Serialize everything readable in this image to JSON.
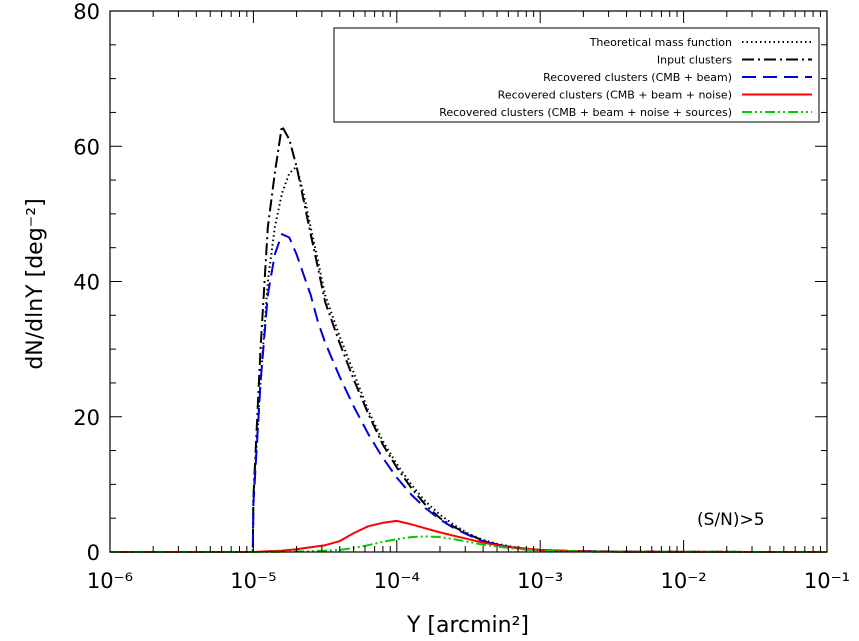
{
  "chart_data": {
    "type": "line",
    "title": "",
    "xlabel": "Y [arcmin²]",
    "ylabel": "dN/dlnY [deg⁻²]",
    "xscale": "log",
    "xlim": [
      1e-06,
      0.1
    ],
    "ylim": [
      0,
      80
    ],
    "x_tick_labels": [
      "10⁻⁶",
      "10⁻⁵",
      "10⁻⁴",
      "10⁻³",
      "10⁻²",
      "10⁻¹"
    ],
    "y_tick_labels": [
      "0",
      "20",
      "40",
      "60",
      "80"
    ],
    "grid": false,
    "legend_position": "top-right",
    "annotation": "(S/N)>5",
    "series": [
      {
        "name": "Theoretical mass function",
        "style": "dotted",
        "color": "#000000",
        "x": [
          1e-06,
          9.9e-06,
          1e-05,
          1.12e-05,
          1.26e-05,
          1.41e-05,
          1.58e-05,
          1.78e-05,
          2e-05,
          2.24e-05,
          2.51e-05,
          2.82e-05,
          3.16e-05,
          3.98e-05,
          5.01e-05,
          6.31e-05,
          7.94e-05,
          0.0001,
          0.000126,
          0.000158,
          0.0002,
          0.000251,
          0.000316,
          0.000398,
          0.000501,
          0.000631,
          0.000794,
          0.001,
          0.00158,
          0.00251,
          0.00398,
          0.01,
          0.1
        ],
        "y": [
          0,
          0,
          8,
          25,
          40,
          48,
          53,
          56,
          57,
          53,
          48,
          43,
          38,
          32,
          26.5,
          21,
          16.5,
          13,
          10,
          7.5,
          5.5,
          4,
          2.7,
          1.8,
          1.2,
          0.8,
          0.5,
          0.3,
          0.15,
          0.1,
          0.05,
          0.02,
          0
        ]
      },
      {
        "name": "Input clusters",
        "style": "dash-dot",
        "color": "#000000",
        "x": [
          1e-06,
          9.9e-06,
          1e-05,
          1.12e-05,
          1.26e-05,
          1.41e-05,
          1.58e-05,
          1.78e-05,
          2e-05,
          2.24e-05,
          2.51e-05,
          2.82e-05,
          3.16e-05,
          3.98e-05,
          5.01e-05,
          6.31e-05,
          7.94e-05,
          0.0001,
          0.000126,
          0.000158,
          0.0002,
          0.000251,
          0.000316,
          0.000398,
          0.000501,
          0.000631,
          0.000794,
          0.001,
          0.00158,
          0.00251,
          0.00398,
          0.01,
          0.1
        ],
        "y": [
          0,
          0,
          8,
          30,
          48,
          56,
          63,
          61,
          57,
          52,
          47,
          42,
          37,
          31,
          25.5,
          20.5,
          16,
          12.5,
          9.5,
          7,
          5,
          3.7,
          2.6,
          1.7,
          1.1,
          0.7,
          0.45,
          0.3,
          0.15,
          0.1,
          0.05,
          0.02,
          0
        ]
      },
      {
        "name": "Recovered clusters (CMB + beam)",
        "style": "dashed",
        "color": "#0000dd",
        "x": [
          1e-06,
          9.9e-06,
          1e-05,
          1.12e-05,
          1.26e-05,
          1.41e-05,
          1.58e-05,
          1.78e-05,
          2e-05,
          2.24e-05,
          2.51e-05,
          2.82e-05,
          3.16e-05,
          3.98e-05,
          5.01e-05,
          6.31e-05,
          7.94e-05,
          0.0001,
          0.000126,
          0.000158,
          0.0002,
          0.000251,
          0.000316,
          0.000398,
          0.000501,
          0.000631,
          0.000794,
          0.001,
          0.00158,
          0.00251,
          0.00398,
          0.01,
          0.1
        ],
        "y": [
          0,
          0,
          7,
          25,
          38,
          44,
          47,
          46.5,
          44,
          41,
          38,
          34,
          31,
          26,
          21.5,
          17.5,
          14,
          11,
          8.5,
          6.5,
          4.8,
          3.5,
          2.5,
          1.6,
          1.1,
          0.7,
          0.45,
          0.3,
          0.15,
          0.1,
          0.05,
          0.02,
          0
        ]
      },
      {
        "name": "Recovered clusters (CMB + beam + noise)",
        "style": "solid",
        "color": "#ff0000",
        "x": [
          1e-06,
          1e-05,
          1.26e-05,
          1.58e-05,
          2e-05,
          2.51e-05,
          3.16e-05,
          3.98e-05,
          5.01e-05,
          6.31e-05,
          7.94e-05,
          0.0001,
          0.000126,
          0.000158,
          0.0002,
          0.000251,
          0.000316,
          0.000398,
          0.000501,
          0.000631,
          0.000794,
          0.001,
          0.00158,
          0.00251,
          0.00398,
          0.01,
          0.1
        ],
        "y": [
          0,
          0,
          0.1,
          0.2,
          0.4,
          0.7,
          1.0,
          1.6,
          2.8,
          3.8,
          4.3,
          4.6,
          4.1,
          3.5,
          2.9,
          2.4,
          1.9,
          1.4,
          1.0,
          0.7,
          0.5,
          0.3,
          0.15,
          0.08,
          0.04,
          0.01,
          0
        ]
      },
      {
        "name": "Recovered clusters (CMB + beam + noise + sources)",
        "style": "dash-dot-dot",
        "color": "#00cc00",
        "x": [
          1e-06,
          1e-05,
          1.58e-05,
          2.51e-05,
          3.98e-05,
          5.01e-05,
          6.31e-05,
          7.94e-05,
          0.0001,
          0.000126,
          0.000158,
          0.0002,
          0.000251,
          0.000316,
          0.000398,
          0.000501,
          0.000631,
          0.000794,
          0.001,
          0.00158,
          0.00251,
          0.00398,
          0.01,
          0.1
        ],
        "y": [
          0,
          0,
          0.05,
          0.1,
          0.3,
          0.6,
          1.0,
          1.5,
          1.9,
          2.2,
          2.3,
          2.2,
          1.9,
          1.5,
          1.1,
          0.8,
          0.55,
          0.35,
          0.2,
          0.1,
          0.05,
          0.02,
          0.01,
          0
        ]
      }
    ]
  }
}
